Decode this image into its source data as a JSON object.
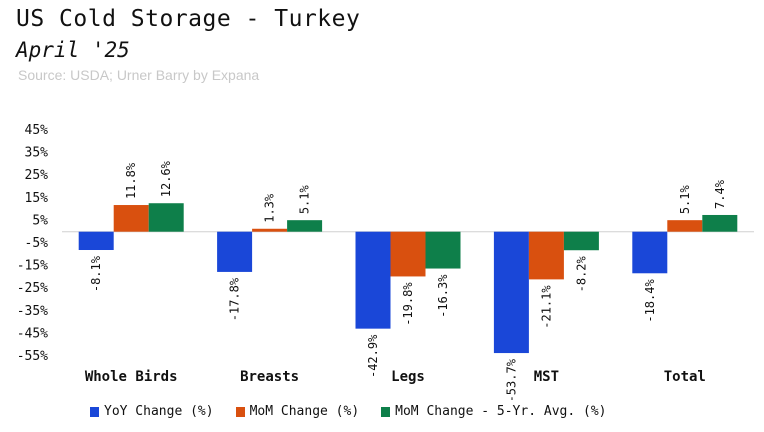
{
  "header": {
    "title": "US Cold Storage - Turkey",
    "subtitle": "April '25",
    "source": "Source: USDA; Urner Barry by Expana"
  },
  "chart_data": {
    "type": "bar",
    "categories": [
      "Whole Birds",
      "Breasts",
      "Legs",
      "MST",
      "Total"
    ],
    "series": [
      {
        "name": "YoY Change (%)",
        "color": "#1a47d8",
        "values": [
          -8.1,
          -17.8,
          -42.9,
          -53.7,
          -18.4
        ],
        "labels": [
          "-8.1%",
          "-17.8%",
          "-42.9%",
          "-53.7%",
          "-18.4%"
        ]
      },
      {
        "name": "MoM Change (%)",
        "color": "#d9500f",
        "values": [
          11.8,
          1.3,
          -19.8,
          -21.1,
          5.1
        ],
        "labels": [
          "11.8%",
          "1.3%",
          "-19.8%",
          "-21.1%",
          "5.1%"
        ]
      },
      {
        "name": "MoM Change - 5-Yr. Avg. (%)",
        "color": "#0e7f4a",
        "values": [
          12.6,
          5.1,
          -16.3,
          -8.2,
          7.4
        ],
        "labels": [
          "12.6%",
          "5.1%",
          "-16.3%",
          "-8.2%",
          "7.4%"
        ]
      }
    ],
    "yticks": [
      "45%",
      "35%",
      "25%",
      "15%",
      "5%",
      "-5%",
      "-15%",
      "-25%",
      "-35%",
      "-45%",
      "-55%"
    ],
    "ylim": [
      -55,
      45
    ],
    "grid": false,
    "legend": "bottom"
  }
}
